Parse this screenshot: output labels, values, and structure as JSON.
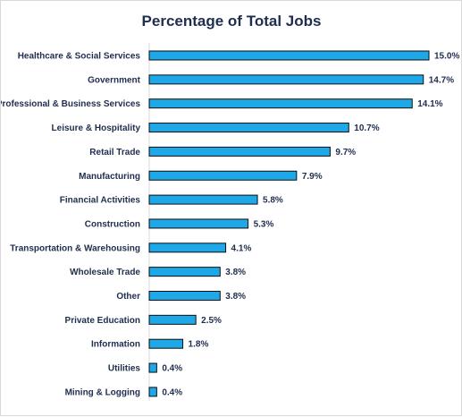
{
  "chart_data": {
    "type": "bar",
    "orientation": "horizontal",
    "title": "Percentage of Total Jobs",
    "categories": [
      "Healthcare & Social Services",
      "Government",
      "Professional & Business Services",
      "Leisure & Hospitality",
      "Retail Trade",
      "Manufacturing",
      "Financial Activities",
      "Construction",
      "Transportation & Warehousing",
      "Wholesale Trade",
      "Other",
      "Private Education",
      "Information",
      "Utilities",
      "Mining & Logging"
    ],
    "values": [
      15.0,
      14.7,
      14.1,
      10.7,
      9.7,
      7.9,
      5.8,
      5.3,
      4.1,
      3.8,
      3.8,
      2.5,
      1.8,
      0.4,
      0.4
    ],
    "value_labels": [
      "15.0%",
      "14.7%",
      "14.1%",
      "10.7%",
      "9.7%",
      "7.9%",
      "5.8%",
      "5.3%",
      "4.1%",
      "3.8%",
      "3.8%",
      "2.5%",
      "1.8%",
      "0.4%",
      "0.4%"
    ],
    "xlabel": "",
    "ylabel": "",
    "xlim": [
      0,
      15
    ],
    "grid": false,
    "legend": "none",
    "colors": {
      "bar_fill": "#1fa8e8",
      "bar_stroke": "#0d0d0d",
      "text": "#1f2d4e"
    }
  }
}
